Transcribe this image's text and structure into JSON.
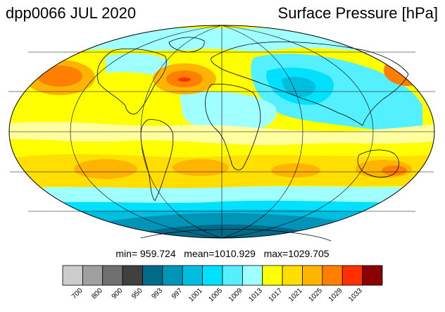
{
  "header": {
    "left_title": "dpp0066 JUL 2020",
    "right_title": "Surface Pressure [hPa]"
  },
  "stats": {
    "min_label": "min=",
    "min_value": "959.724",
    "mean_label": "mean=",
    "mean_value": "1010.929",
    "max_label": "max=",
    "max_value": "1029.705"
  },
  "map": {
    "projection": "Mollweide",
    "background_color": "#ffff00",
    "graticule_color": "#000000"
  },
  "colorbar": {
    "colors": [
      "#cccccc",
      "#a0a0a0",
      "#707070",
      "#404040",
      "#006a8a",
      "#0094b8",
      "#00bee0",
      "#00e0ff",
      "#55f0ff",
      "#a0ffff",
      "#ffff00",
      "#ffde00",
      "#ffb400",
      "#ff8000",
      "#ff3000",
      "#8b0000"
    ],
    "tick_labels": [
      "700",
      "800",
      "900",
      "950",
      "993",
      "997",
      "1001",
      "1005",
      "1009",
      "1013",
      "1017",
      "1021",
      "1025",
      "1029",
      "1033"
    ]
  }
}
